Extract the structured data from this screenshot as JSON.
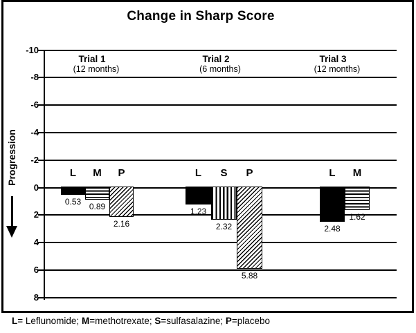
{
  "figure": {
    "title": "Change in Sharp Score"
  },
  "chart_data": {
    "type": "bar",
    "title": "Change in Sharp Score",
    "ylabel": "Progression",
    "ylabel_arrow": "down",
    "y_axis": {
      "ticks": [
        -10,
        -8,
        -6,
        -4,
        -2,
        0,
        2,
        4,
        6,
        8
      ],
      "range": [
        -10,
        8
      ],
      "inverted_progression_down": true
    },
    "grid": "horizontal",
    "legend_map": {
      "L": "Leflunomide",
      "M": "methotrexate",
      "S": "sulfasalazine",
      "P": "placebo"
    },
    "groups": [
      {
        "label": "Trial 1",
        "sublabel": "(12 months)",
        "bars": [
          {
            "key": "L",
            "value": 0.53,
            "value_label": "0.53",
            "pattern": "solid"
          },
          {
            "key": "M",
            "value": 0.89,
            "value_label": "0.89",
            "pattern": "hlines"
          },
          {
            "key": "P",
            "value": 2.16,
            "value_label": "2.16",
            "pattern": "diag"
          }
        ]
      },
      {
        "label": "Trial 2",
        "sublabel": "(6 months)",
        "bars": [
          {
            "key": "L",
            "value": 1.23,
            "value_label": "1.23",
            "pattern": "solid"
          },
          {
            "key": "S",
            "value": 2.32,
            "value_label": "2.32",
            "pattern": "vlines"
          },
          {
            "key": "P",
            "value": 5.88,
            "value_label": "5.88",
            "pattern": "diag"
          }
        ]
      },
      {
        "label": "Trial 3",
        "sublabel": "(12 months)",
        "bars": [
          {
            "key": "L",
            "value": 2.48,
            "value_label": "2.48",
            "pattern": "solid"
          },
          {
            "key": "M",
            "value": 1.62,
            "value_label": "1.62",
            "pattern": "hlines"
          }
        ]
      }
    ]
  },
  "footnote": {
    "parts": [
      {
        "bold": "L",
        "rest": "= Leflunomide; "
      },
      {
        "bold": "M",
        "rest": "=methotrexate; "
      },
      {
        "bold": "S",
        "rest": "=sulfasalazine; "
      },
      {
        "bold": "P",
        "rest": "=placebo"
      }
    ]
  },
  "colors": {
    "ink": "#000000",
    "background": "#ffffff"
  }
}
